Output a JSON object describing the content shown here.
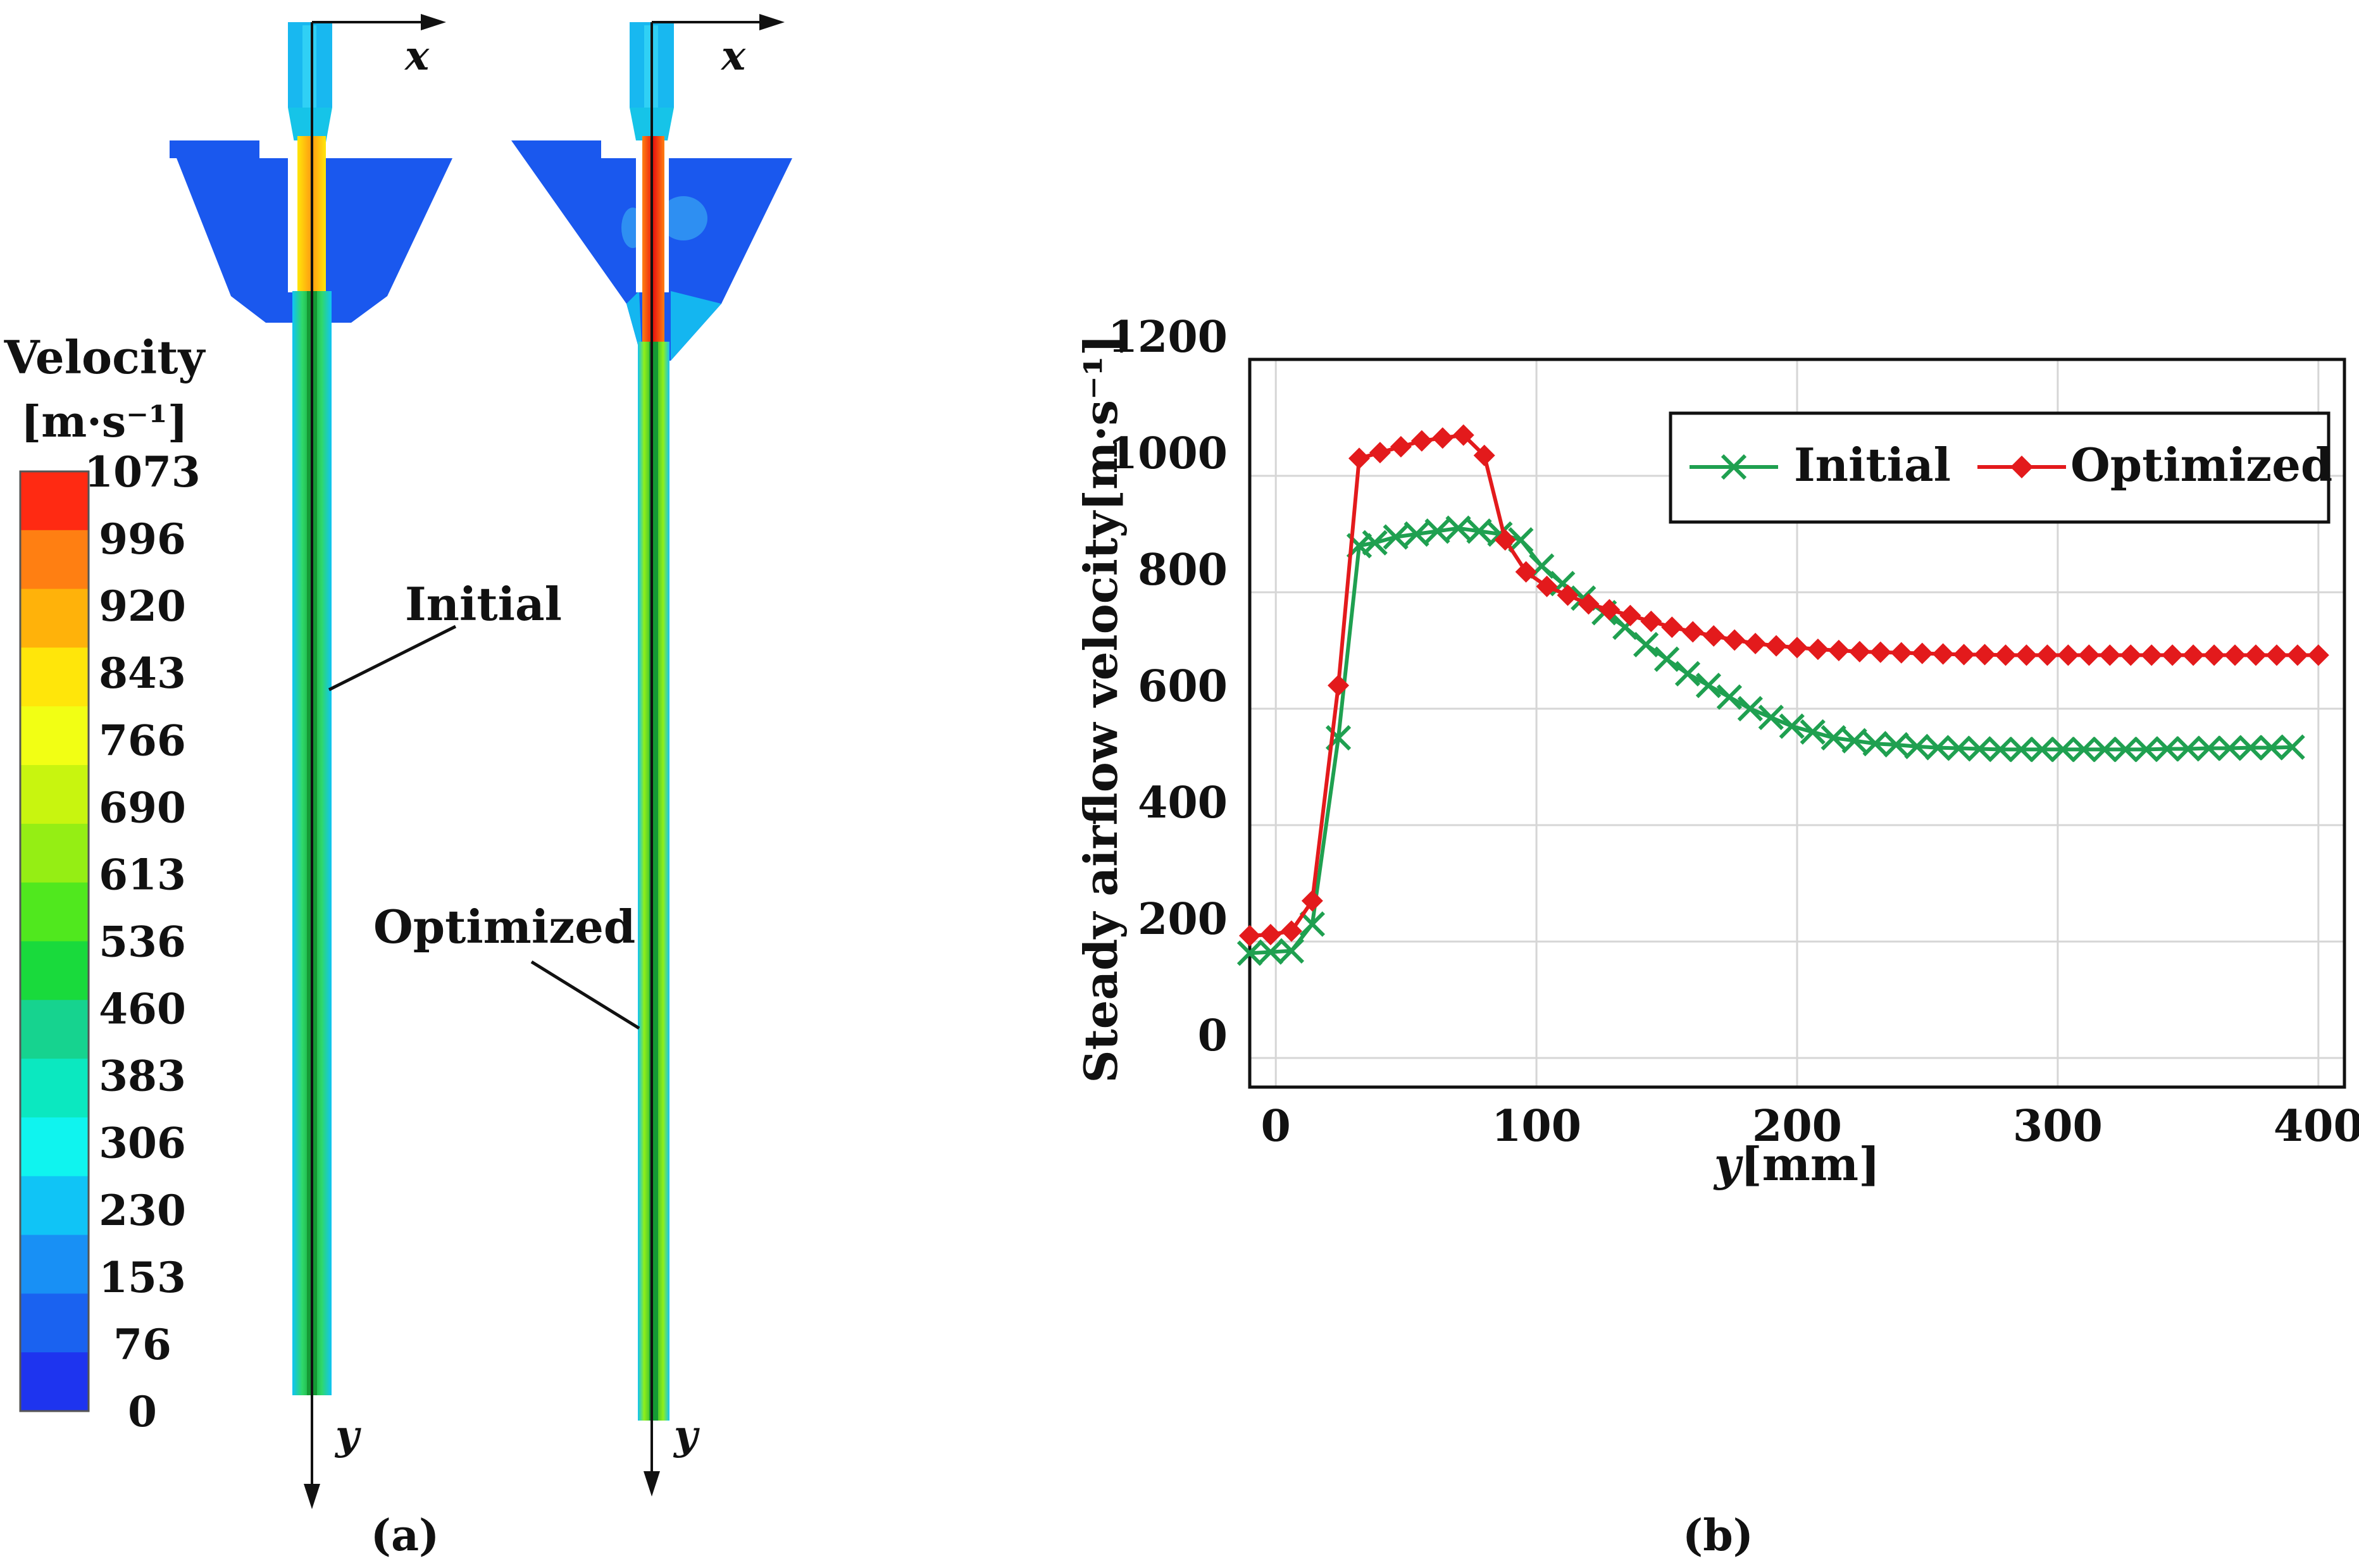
{
  "panel_a": {
    "legend_title_line1": "Velocity",
    "legend_title_line2": "[m·s⁻¹]",
    "legend_ticks": [
      "1073",
      "996",
      "920",
      "843",
      "766",
      "690",
      "613",
      "536",
      "460",
      "383",
      "306",
      "230",
      "153",
      "76",
      "0"
    ],
    "legend_colors": [
      "#ff2a12",
      "#ff7f12",
      "#ffb20a",
      "#ffe60a",
      "#f2ff14",
      "#c8f50f",
      "#95ee14",
      "#50e81e",
      "#19da3c",
      "#16d38f",
      "#0be8c0",
      "#0ff4ef",
      "#10c4f6",
      "#1890f5",
      "#1a62f0",
      "#1e34ef"
    ],
    "initial_label": "Initial",
    "optimized_label": "Optimized",
    "axis_x": "x",
    "axis_y": "y",
    "caption": "(a)"
  },
  "chart_data": {
    "type": "line",
    "title": "",
    "xlabel_italic": "y",
    "xlabel_units": "[mm]",
    "ylabel": "Steady airflow velocity[m·s⁻¹]",
    "xlim": [
      -10,
      410
    ],
    "ylim": [
      -50,
      1200
    ],
    "xticks": [
      0,
      100,
      200,
      300,
      400
    ],
    "yticks": [
      0,
      200,
      400,
      600,
      800,
      1000,
      1200
    ],
    "grid": true,
    "legend_position": "top-right",
    "caption": "(b)",
    "series": [
      {
        "name": "Initial",
        "color": "#1fa050",
        "marker": "x",
        "x": [
          -10,
          -2,
          6,
          14,
          24,
          32,
          38,
          46,
          54,
          62,
          70,
          78,
          86,
          94,
          102,
          110,
          118,
          126,
          134,
          142,
          150,
          158,
          166,
          174,
          182,
          190,
          198,
          206,
          214,
          222,
          230,
          238,
          246,
          254,
          262,
          270,
          278,
          286,
          294,
          302,
          310,
          318,
          326,
          334,
          342,
          350,
          358,
          366,
          374,
          382,
          390
        ],
        "y": [
          180,
          182,
          184,
          230,
          550,
          880,
          885,
          895,
          900,
          905,
          910,
          905,
          900,
          890,
          845,
          815,
          790,
          765,
          740,
          710,
          685,
          660,
          640,
          620,
          600,
          585,
          570,
          560,
          550,
          545,
          540,
          538,
          535,
          533,
          532,
          531,
          530,
          530,
          530,
          530,
          530,
          530,
          530,
          530,
          531,
          531,
          532,
          532,
          533,
          533,
          534
        ]
      },
      {
        "name": "Optimized",
        "color": "#e31a1c",
        "marker": "diamond",
        "x": [
          -10,
          -2,
          6,
          14,
          24,
          32,
          40,
          48,
          56,
          64,
          72,
          80,
          88,
          96,
          104,
          112,
          120,
          128,
          136,
          144,
          152,
          160,
          168,
          176,
          184,
          192,
          200,
          208,
          216,
          224,
          232,
          240,
          248,
          256,
          264,
          272,
          280,
          288,
          296,
          304,
          312,
          320,
          328,
          336,
          344,
          352,
          360,
          368,
          376,
          384,
          392,
          400
        ],
        "y": [
          210,
          212,
          218,
          270,
          640,
          1030,
          1040,
          1050,
          1060,
          1065,
          1070,
          1035,
          890,
          835,
          810,
          795,
          780,
          770,
          760,
          750,
          740,
          732,
          725,
          718,
          712,
          708,
          705,
          702,
          700,
          698,
          697,
          696,
          695,
          694,
          693,
          693,
          692,
          692,
          692,
          692,
          692,
          692,
          692,
          692,
          692,
          692,
          692,
          692,
          692,
          692,
          692,
          692
        ]
      }
    ]
  }
}
